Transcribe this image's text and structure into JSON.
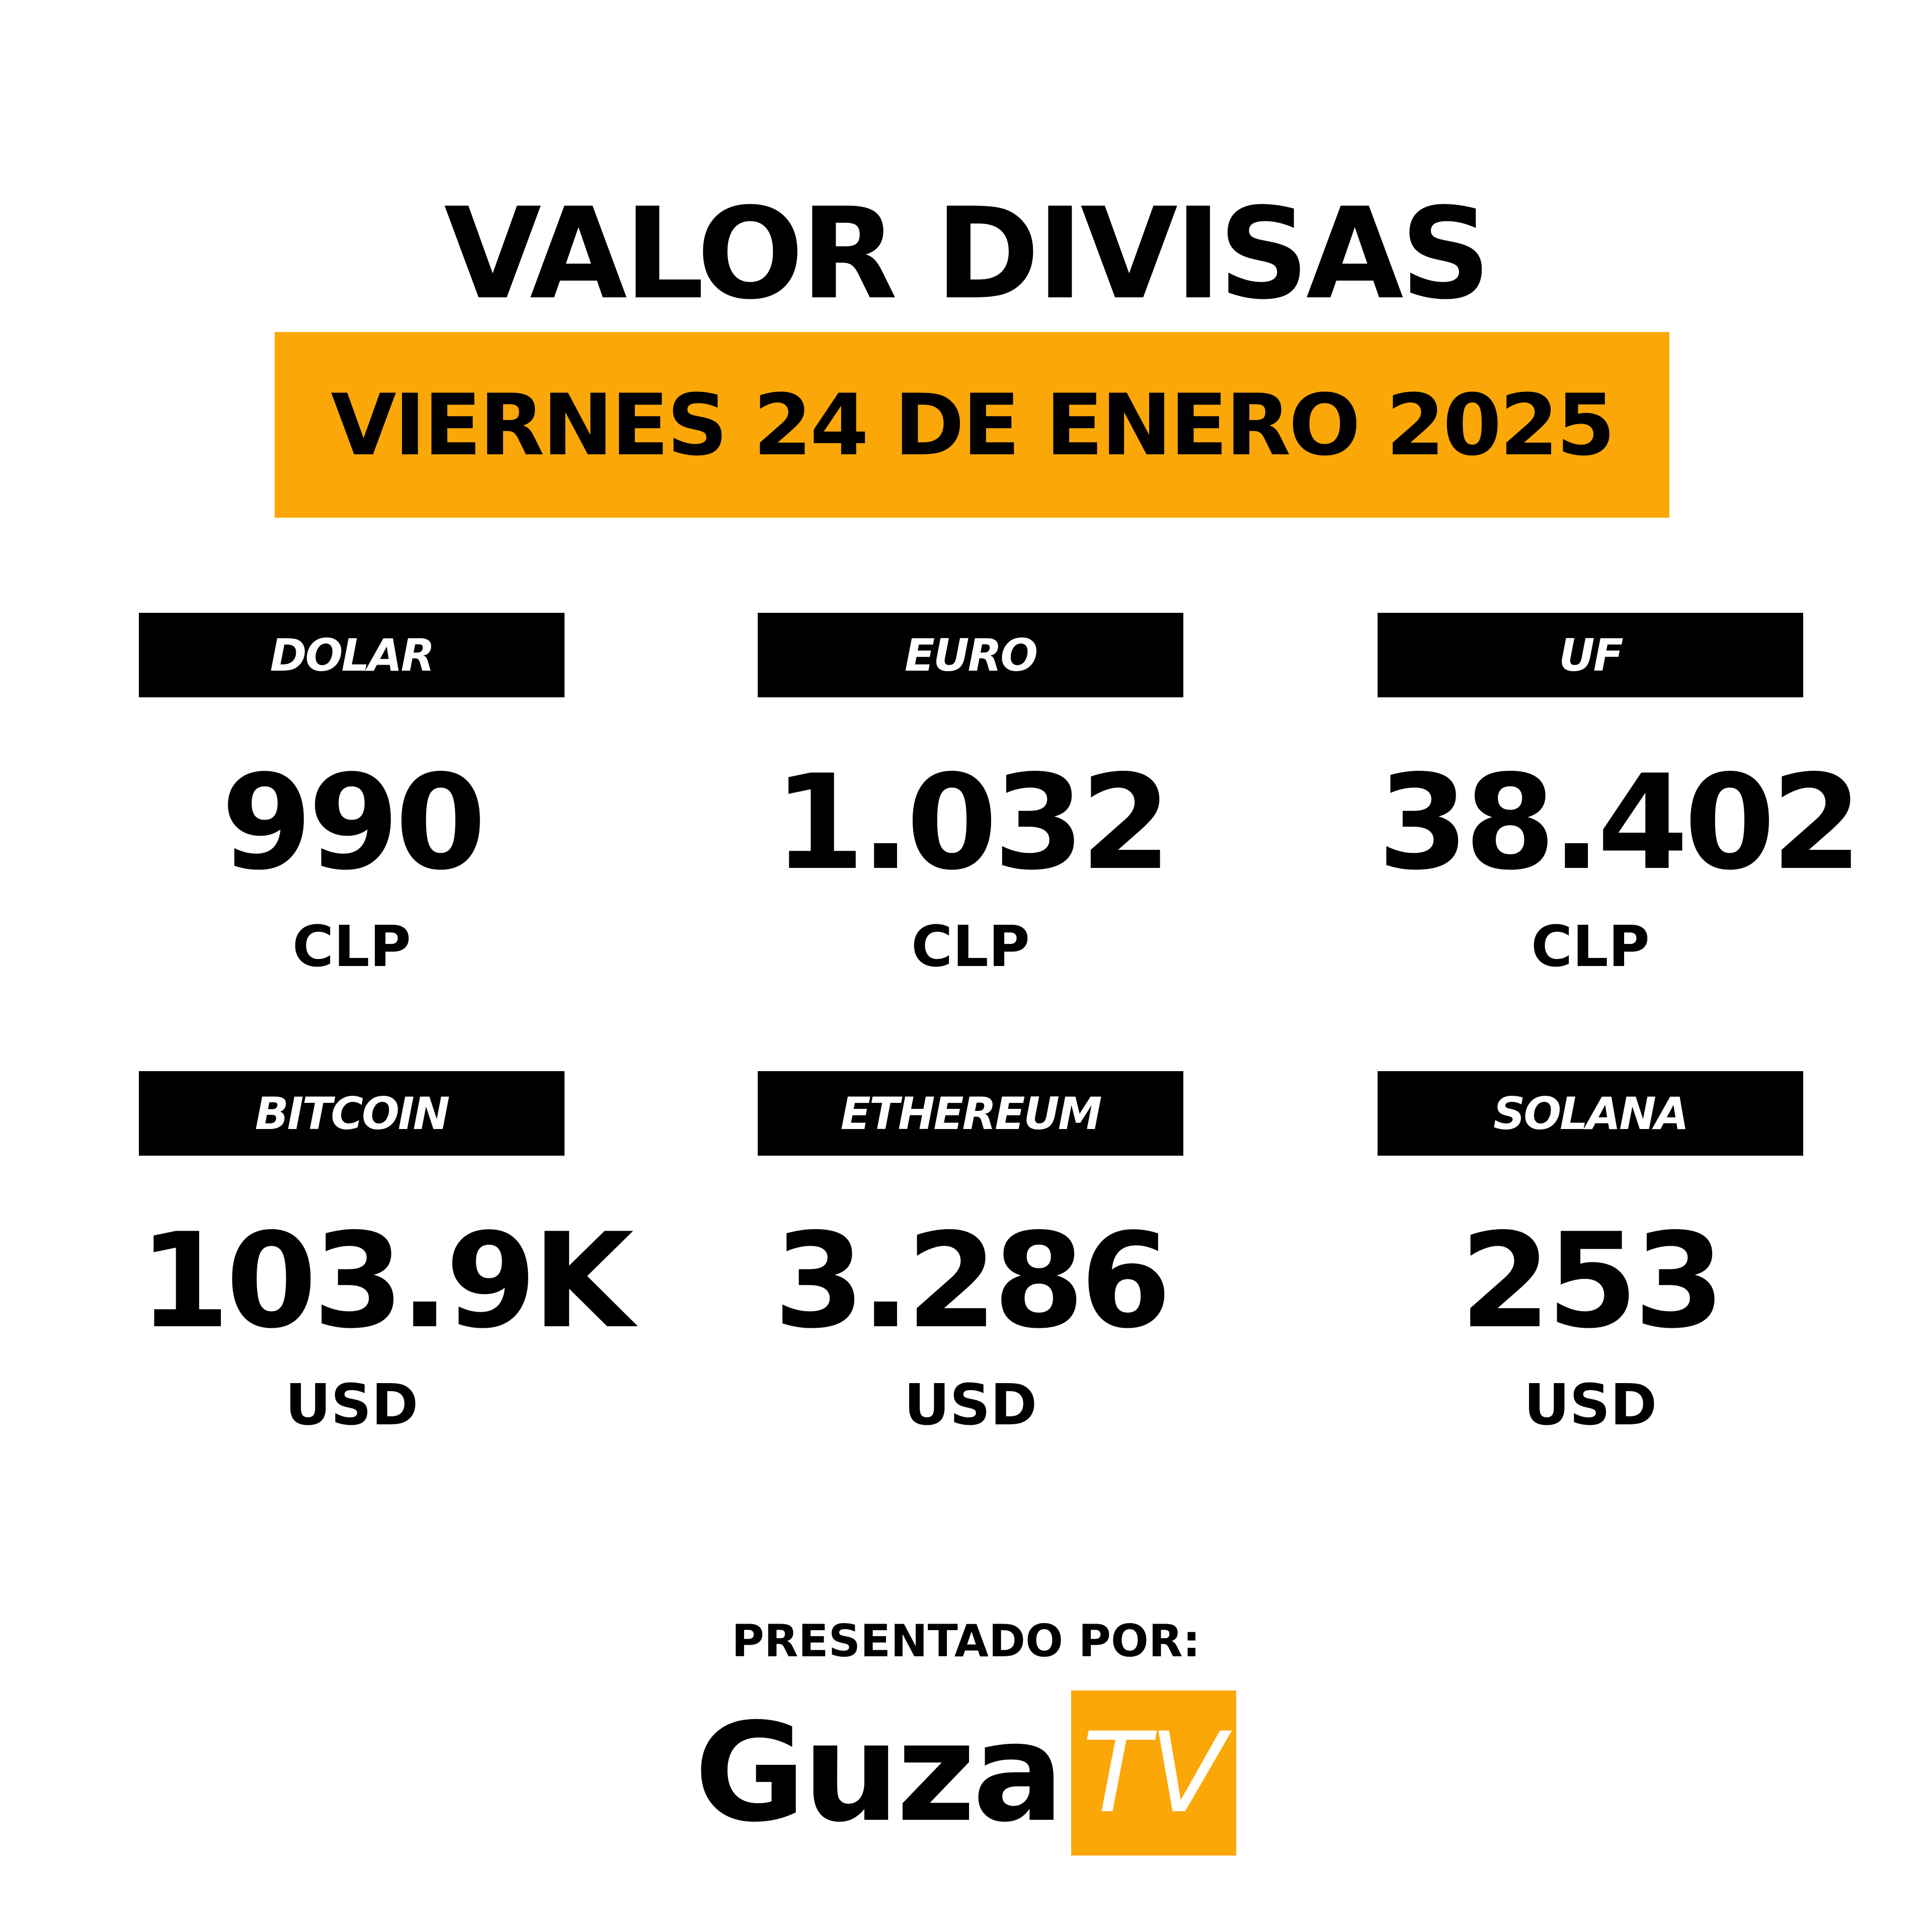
{
  "header": {
    "title": "VALOR DIVISAS",
    "date": "VIERNES 24 DE ENERO 2025"
  },
  "rates": [
    {
      "label": "DOLAR",
      "value": "990",
      "unit": "CLP"
    },
    {
      "label": "EURO",
      "value": "1.032",
      "unit": "CLP"
    },
    {
      "label": "UF",
      "value": "38.402",
      "unit": "CLP"
    },
    {
      "label": "BITCOIN",
      "value": "103.9K",
      "unit": "USD"
    },
    {
      "label": "ETHEREUM",
      "value": "3.286",
      "unit": "USD"
    },
    {
      "label": "SOLANA",
      "value": "253",
      "unit": "USD"
    }
  ],
  "footer": {
    "presented_by": "PRESENTADO POR:",
    "logo_text": "Guza",
    "logo_badge": "TV"
  }
}
